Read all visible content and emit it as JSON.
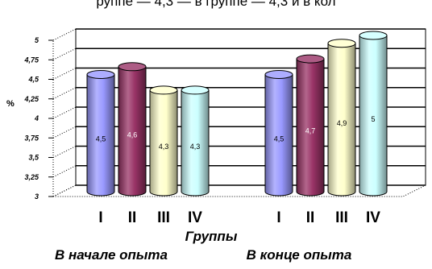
{
  "top_text": "руппе — 4,3 — в группе — 4,3 и в кол",
  "chart_data": {
    "type": "bar",
    "style": "3d-cylinder",
    "ylabel": "%",
    "ylim": [
      3,
      5
    ],
    "yticks": [
      "3",
      "3,25",
      "3,5",
      "3,75",
      "4",
      "4,25",
      "4,5",
      "4,75",
      "5"
    ],
    "grid": true,
    "xlabel": "Группы",
    "category_groups": [
      {
        "label": "В начале опыта",
        "bars": [
          {
            "category": "I",
            "value": 4.5,
            "label": "4,5",
            "color": "#9999ff"
          },
          {
            "category": "II",
            "value": 4.6,
            "label": "4,6",
            "color": "#993366"
          },
          {
            "category": "III",
            "value": 4.3,
            "label": "4,3",
            "color": "#ffffcc"
          },
          {
            "category": "IV",
            "value": 4.3,
            "label": "4,3",
            "color": "#ccffff"
          }
        ]
      },
      {
        "label": "В конце опыта",
        "bars": [
          {
            "category": "I",
            "value": 4.5,
            "label": "4,5",
            "color": "#9999ff"
          },
          {
            "category": "II",
            "value": 4.7,
            "label": "4,7",
            "color": "#993366"
          },
          {
            "category": "III",
            "value": 4.9,
            "label": "4,9",
            "color": "#ffffcc"
          },
          {
            "category": "IV",
            "value": 5,
            "label": "5",
            "color": "#ccffff"
          }
        ]
      }
    ]
  }
}
